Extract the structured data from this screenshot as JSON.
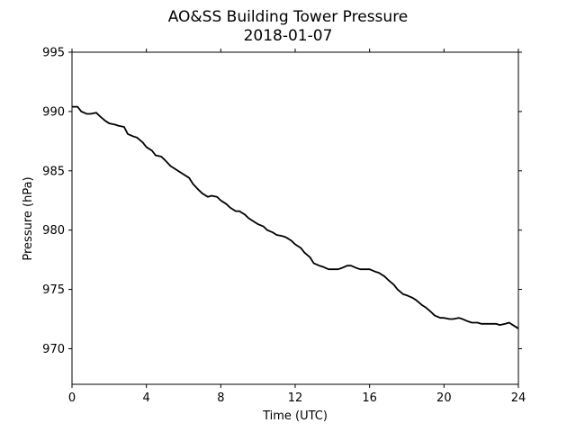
{
  "chart_data": {
    "type": "line",
    "title": "AO&SS Building Tower Pressure",
    "subtitle": "2018-01-07",
    "xlabel": "Time (UTC)",
    "ylabel": "Pressure (hPa)",
    "xlim": [
      0,
      24
    ],
    "ylim": [
      967,
      995
    ],
    "xticks": [
      0,
      4,
      8,
      12,
      16,
      20,
      24
    ],
    "yticks": [
      970,
      975,
      980,
      985,
      990,
      995
    ],
    "grid": false,
    "legend": "none",
    "line_color": "#000000",
    "series": [
      {
        "x": [
          0,
          0.3,
          0.5,
          0.8,
          1.0,
          1.3,
          1.5,
          1.8,
          2.0,
          2.3,
          2.5,
          2.8,
          3.0,
          3.3,
          3.5,
          3.8,
          4.0,
          4.3,
          4.5,
          4.8,
          5.0,
          5.3,
          5.5,
          5.8,
          6.0,
          6.3,
          6.5,
          6.8,
          7.0,
          7.3,
          7.5,
          7.8,
          8.0,
          8.3,
          8.5,
          8.8,
          9.0,
          9.3,
          9.5,
          9.8,
          10.0,
          10.3,
          10.5,
          10.8,
          11.0,
          11.3,
          11.5,
          11.8,
          12.0,
          12.3,
          12.5,
          12.8,
          13.0,
          13.3,
          13.5,
          13.8,
          14.0,
          14.3,
          14.5,
          14.8,
          15.0,
          15.3,
          15.5,
          15.8,
          16.0,
          16.3,
          16.5,
          16.8,
          17.0,
          17.3,
          17.5,
          17.8,
          18.0,
          18.3,
          18.5,
          18.8,
          19.0,
          19.3,
          19.5,
          19.8,
          20.0,
          20.3,
          20.5,
          20.8,
          21.0,
          21.3,
          21.5,
          21.8,
          22.0,
          22.3,
          22.5,
          22.8,
          23.0,
          23.3,
          23.5,
          23.8,
          24.0
        ],
        "values": [
          990.4,
          990.4,
          990.0,
          989.8,
          989.8,
          989.9,
          989.6,
          989.2,
          989.0,
          988.9,
          988.8,
          988.7,
          988.1,
          987.9,
          987.8,
          987.4,
          987.0,
          986.7,
          986.3,
          986.2,
          985.9,
          985.4,
          985.2,
          984.9,
          984.7,
          984.4,
          983.9,
          983.4,
          983.1,
          982.8,
          982.9,
          982.8,
          982.5,
          982.2,
          981.9,
          981.6,
          981.6,
          981.3,
          981.0,
          980.7,
          980.5,
          980.3,
          980.0,
          979.8,
          979.6,
          979.5,
          979.4,
          979.1,
          978.8,
          978.5,
          978.1,
          977.7,
          977.2,
          977.0,
          976.9,
          976.7,
          976.7,
          976.7,
          976.8,
          977.0,
          977.0,
          976.8,
          976.7,
          976.7,
          976.7,
          976.5,
          976.4,
          976.1,
          975.8,
          975.4,
          975.0,
          974.6,
          974.5,
          974.3,
          974.1,
          973.7,
          973.5,
          973.1,
          972.8,
          972.6,
          972.6,
          972.5,
          972.5,
          972.6,
          972.5,
          972.3,
          972.2,
          972.2,
          972.1,
          972.1,
          972.1,
          972.1,
          972.0,
          972.1,
          972.2,
          971.9,
          971.7
        ]
      }
    ]
  }
}
